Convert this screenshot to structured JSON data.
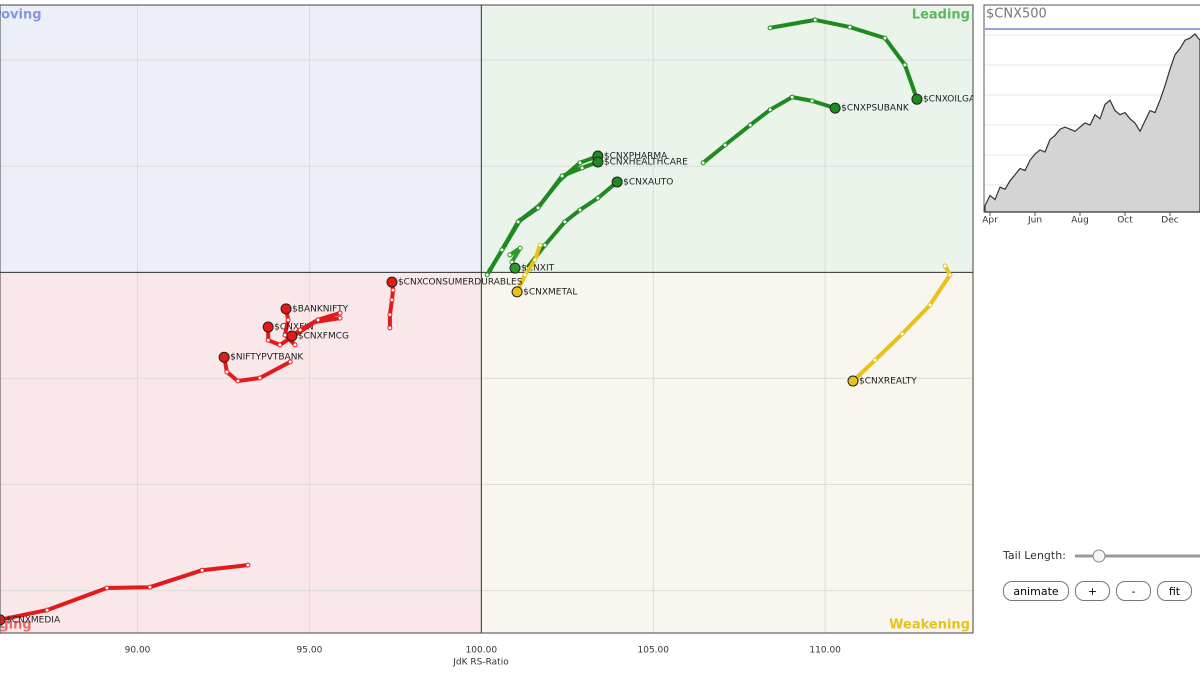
{
  "chart_data": [
    {
      "type": "scatter",
      "x_label": "JdK RS-Ratio",
      "quadrants": {
        "top_left": "Improving",
        "top_right": "Leading",
        "bottom_left": "Lagging",
        "bottom_right": "Weakening"
      },
      "quadrant_colors": {
        "top_left": "#eceef8",
        "top_right": "#eaf4ea",
        "bottom_left": "#f9e7e9",
        "bottom_right": "#f8f6ee"
      },
      "quadrant_label_colors": {
        "top_left": "#8497e0",
        "top_right": "#5cb85c",
        "bottom_left": "#e66a6a",
        "bottom_right": "#e8c21a"
      },
      "center": [
        100,
        100
      ],
      "xlim": [
        86,
        114.3
      ],
      "ylim": [
        91.5,
        106.3
      ],
      "xticks": [
        {
          "value": 90,
          "label": "90.00"
        },
        {
          "value": 95,
          "label": "95.00"
        },
        {
          "value": 100,
          "label": "100.00"
        },
        {
          "value": 105,
          "label": "105.00"
        },
        {
          "value": 110,
          "label": "110.00"
        }
      ],
      "yticks": [
        92.5,
        95,
        97.5,
        100,
        102.5,
        105
      ],
      "grid": true,
      "series": [
        {
          "name": "$CNXOILGAS",
          "color": "#1f8a1f",
          "x": [
            108.4,
            109.71,
            110.72,
            111.74,
            112.32,
            112.67
          ],
          "y": [
            105.76,
            105.95,
            105.78,
            105.52,
            104.89,
            104.08
          ]
        },
        {
          "name": "$CNXPSUBANK",
          "color": "#1f8a1f",
          "x": [
            106.45,
            107.09,
            107.82,
            108.4,
            109.04,
            109.62,
            110.29
          ],
          "y": [
            102.58,
            103.0,
            103.47,
            103.83,
            104.13,
            104.04,
            103.87
          ]
        },
        {
          "name": "$CNXPHARMA",
          "color": "#1f8a1f",
          "x": [
            100.25,
            100.69,
            101.13,
            101.71,
            102.29,
            102.87,
            103.39
          ],
          "y": [
            100.05,
            100.64,
            101.23,
            101.59,
            102.18,
            102.58,
            102.74
          ]
        },
        {
          "name": "$CNXHEALTHCARE",
          "color": "#1f8a1f",
          "x": [
            100.17,
            100.6,
            101.07,
            101.65,
            102.35,
            102.93,
            103.39
          ],
          "y": [
            99.94,
            100.53,
            101.19,
            101.52,
            102.27,
            102.46,
            102.6
          ]
        },
        {
          "name": "$CNXAUTO",
          "color": "#1f8a1f",
          "x": [
            101.33,
            101.85,
            102.43,
            102.87,
            103.39,
            103.95
          ],
          "y": [
            100.1,
            100.64,
            101.19,
            101.47,
            101.75,
            102.13
          ]
        },
        {
          "name": "$CNXIT",
          "color": "#2e9a2e",
          "x": [
            100.83,
            101.13,
            100.89,
            100.98
          ],
          "y": [
            100.41,
            100.57,
            100.24,
            100.1
          ]
        },
        {
          "name": "$CNXMETAL",
          "color": "#e8c21a",
          "x": [
            101.71,
            101.56,
            101.27,
            101.04
          ],
          "y": [
            100.64,
            100.29,
            99.94,
            99.54
          ]
        },
        {
          "name": "$CNXREALTY",
          "color": "#e8c21a",
          "x": [
            113.49,
            113.63,
            113.05,
            112.24,
            111.45,
            110.81
          ],
          "y": [
            100.15,
            99.94,
            99.23,
            98.55,
            97.93,
            97.44
          ]
        },
        {
          "name": "$CNXCONSUMERDURABLES",
          "color": "#e31a1a",
          "x": [
            97.34,
            97.34,
            97.4,
            97.43,
            97.4
          ],
          "y": [
            98.69,
            99.0,
            99.35,
            99.58,
            99.77
          ]
        },
        {
          "name": "$BANKNIFTY",
          "color": "#e31a1a",
          "x": [
            94.58,
            94.29,
            94.38,
            94.32
          ],
          "y": [
            98.29,
            98.52,
            98.88,
            99.14
          ]
        },
        {
          "name": "$CNXFIN",
          "color": "#e31a1a",
          "x": [
            95.89,
            95.16,
            94.14,
            93.8,
            93.8
          ],
          "y": [
            98.92,
            98.83,
            98.29,
            98.4,
            98.71
          ]
        },
        {
          "name": "$CNXFMCG",
          "color": "#e31a1a",
          "x": [
            95.89,
            95.25,
            94.73,
            94.49
          ],
          "y": [
            99.04,
            98.88,
            98.64,
            98.5
          ]
        },
        {
          "name": "$NIFTYPVTBANK",
          "color": "#e31a1a",
          "x": [
            94.44,
            93.56,
            92.92,
            92.6,
            92.52
          ],
          "y": [
            97.89,
            97.51,
            97.44,
            97.65,
            98.0
          ]
        },
        {
          "name": "$CNXMEDIA",
          "color": "#e31a1a",
          "x": [
            93.21,
            91.88,
            90.36,
            89.11,
            87.37,
            86.0
          ],
          "y": [
            93.1,
            92.98,
            92.58,
            92.56,
            92.04,
            91.81
          ]
        }
      ]
    },
    {
      "type": "area",
      "title": "$CNX500",
      "color": "#d4d4d4",
      "categories": [
        null,
        "Apr",
        null,
        null,
        null,
        null,
        null,
        null,
        null,
        null,
        "Jun",
        null,
        null,
        null,
        null,
        null,
        null,
        null,
        null,
        "Aug",
        null,
        null,
        null,
        null,
        null,
        null,
        null,
        null,
        "Oct",
        null,
        null,
        null,
        null,
        null,
        null,
        null,
        null,
        "Dec",
        null,
        null,
        null,
        null,
        null,
        null
      ],
      "values": [
        3,
        8,
        6,
        12,
        11,
        15,
        18,
        21,
        20,
        25,
        28,
        30,
        29,
        35,
        37,
        40,
        41,
        40,
        39,
        41,
        43,
        42,
        47,
        45,
        52,
        54,
        49,
        47,
        48,
        45,
        43,
        39,
        44,
        49,
        48,
        54,
        61,
        69,
        76,
        79,
        83,
        84,
        86,
        83
      ],
      "ylim": [
        0,
        100
      ]
    }
  ],
  "controls": {
    "tail_length_label": "Tail Length:",
    "buttons": [
      "animate",
      "+",
      "-",
      "fit"
    ]
  }
}
